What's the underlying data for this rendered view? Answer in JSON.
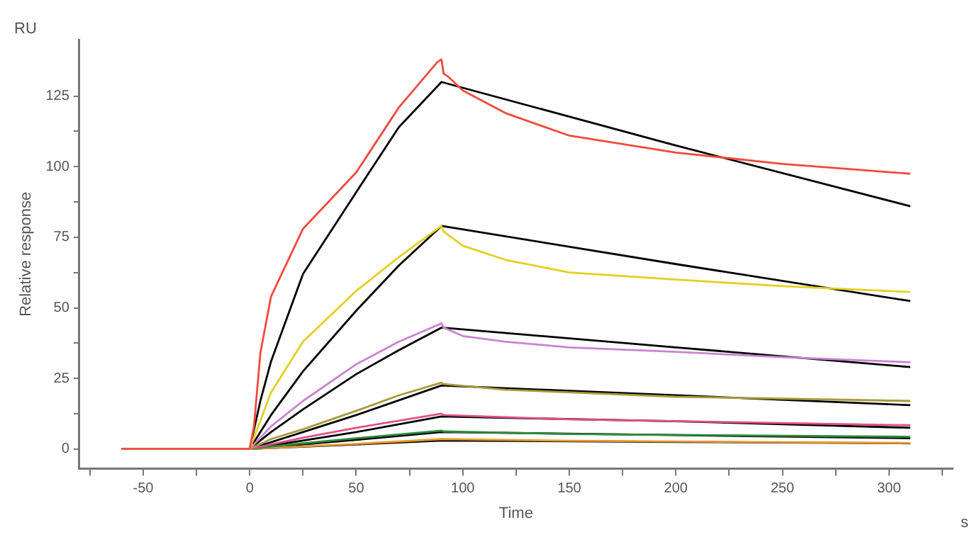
{
  "chart_data": {
    "type": "line",
    "xlabel": "Time",
    "ylabel": "Relative response",
    "annotations": [
      "RU",
      "s"
    ],
    "xlim": [
      -80,
      330
    ],
    "ylim": [
      -7,
      145
    ],
    "xticks": [
      {
        "value": -75,
        "label": null
      },
      -50,
      {
        "value": -25,
        "label": null
      },
      0,
      {
        "value": 25,
        "label": null
      },
      50,
      {
        "value": 75,
        "label": null
      },
      100,
      {
        "value": 125,
        "label": null
      },
      150,
      {
        "value": 175,
        "label": null
      },
      200,
      {
        "value": 225,
        "label": null
      },
      250,
      {
        "value": 275,
        "label": null
      },
      300,
      {
        "value": 325,
        "label": null
      }
    ],
    "yticks": [
      0,
      {
        "value": 12.5,
        "label": null
      },
      25,
      {
        "value": 37.5,
        "label": null
      },
      50,
      {
        "value": 62.5,
        "label": null
      },
      75,
      {
        "value": 87.5,
        "label": null
      },
      100,
      {
        "value": 112.5,
        "label": null
      },
      125
    ],
    "grid": false,
    "legend": false,
    "marker": "none",
    "line_style": "solid",
    "series": [
      {
        "color": "#f04a3e",
        "x": [
          -60,
          0,
          2,
          5,
          10,
          25,
          50,
          70,
          88,
          90,
          91,
          93,
          100,
          120,
          150,
          200,
          250,
          310
        ],
        "values": [
          0,
          0,
          8,
          34,
          54,
          78,
          98,
          121,
          137,
          138,
          133,
          132,
          127,
          119,
          111,
          105,
          101,
          97.5
        ]
      },
      {
        "color": "#e3d020",
        "x": [
          -60,
          0,
          10,
          25,
          50,
          70,
          90,
          91,
          100,
          120,
          150,
          200,
          250,
          310
        ],
        "values": [
          0,
          0,
          20,
          38,
          56,
          68,
          79,
          77,
          72,
          67,
          62.5,
          60,
          57.7,
          55.6
        ]
      },
      {
        "color": "#c983d0",
        "x": [
          -60,
          0,
          10,
          25,
          50,
          70,
          90,
          91,
          100,
          120,
          150,
          200,
          250,
          310
        ],
        "values": [
          0,
          0,
          8,
          17,
          30,
          38,
          44.5,
          43,
          40,
          38,
          36,
          34.4,
          32.5,
          30.7
        ]
      },
      {
        "color": "#a89a3a",
        "x": [
          -60,
          0,
          10,
          25,
          50,
          70,
          90,
          91,
          120,
          200,
          310
        ],
        "values": [
          0,
          0,
          3.5,
          7,
          13.5,
          19,
          23.5,
          23,
          21,
          18.5,
          17
        ]
      },
      {
        "color": "#e0508a",
        "x": [
          -60,
          0,
          25,
          50,
          90,
          91,
          150,
          310
        ],
        "values": [
          0,
          0,
          4,
          7.5,
          12.5,
          12,
          10.5,
          8.4
        ]
      },
      {
        "color": "#2e8b3e",
        "x": [
          -60,
          0,
          25,
          50,
          90,
          91,
          150,
          310
        ],
        "values": [
          0,
          0,
          2,
          3.8,
          6.5,
          6.2,
          5.3,
          4.3
        ]
      },
      {
        "color": "#e89a30",
        "x": [
          -60,
          0,
          50,
          90,
          150,
          310
        ],
        "values": [
          0,
          0,
          1.8,
          3.5,
          2.9,
          2.1
        ]
      },
      {
        "color": "#000000",
        "x": [
          -60,
          0,
          5,
          10,
          25,
          50,
          70,
          90,
          200,
          310
        ],
        "values": [
          0,
          0,
          17,
          31,
          62,
          91,
          114,
          130,
          107.5,
          86
        ]
      },
      {
        "color": "#000000",
        "x": [
          -60,
          0,
          10,
          25,
          50,
          70,
          90,
          200,
          310
        ],
        "values": [
          0,
          0,
          12,
          27.5,
          49,
          65,
          79,
          65.5,
          52.4
        ]
      },
      {
        "color": "#000000",
        "x": [
          -60,
          0,
          10,
          25,
          50,
          70,
          90,
          200,
          310
        ],
        "values": [
          0,
          0,
          6,
          14,
          26.5,
          35,
          43,
          36,
          29
        ]
      },
      {
        "color": "#000000",
        "x": [
          -60,
          0,
          25,
          50,
          90,
          200,
          310
        ],
        "values": [
          0,
          0,
          6,
          12,
          22.5,
          19,
          15.5
        ]
      },
      {
        "color": "#000000",
        "x": [
          -60,
          0,
          25,
          50,
          90,
          200,
          310
        ],
        "values": [
          0,
          0,
          3,
          6,
          11.5,
          9.8,
          7.5
        ]
      },
      {
        "color": "#000000",
        "x": [
          -60,
          0,
          50,
          90,
          200,
          310
        ],
        "values": [
          0,
          0,
          3.2,
          6,
          4.9,
          3.8
        ]
      },
      {
        "color": "#000000",
        "x": [
          -60,
          0,
          50,
          90,
          200,
          310
        ],
        "values": [
          0,
          0,
          1.6,
          3,
          2.5,
          2
        ]
      }
    ]
  }
}
